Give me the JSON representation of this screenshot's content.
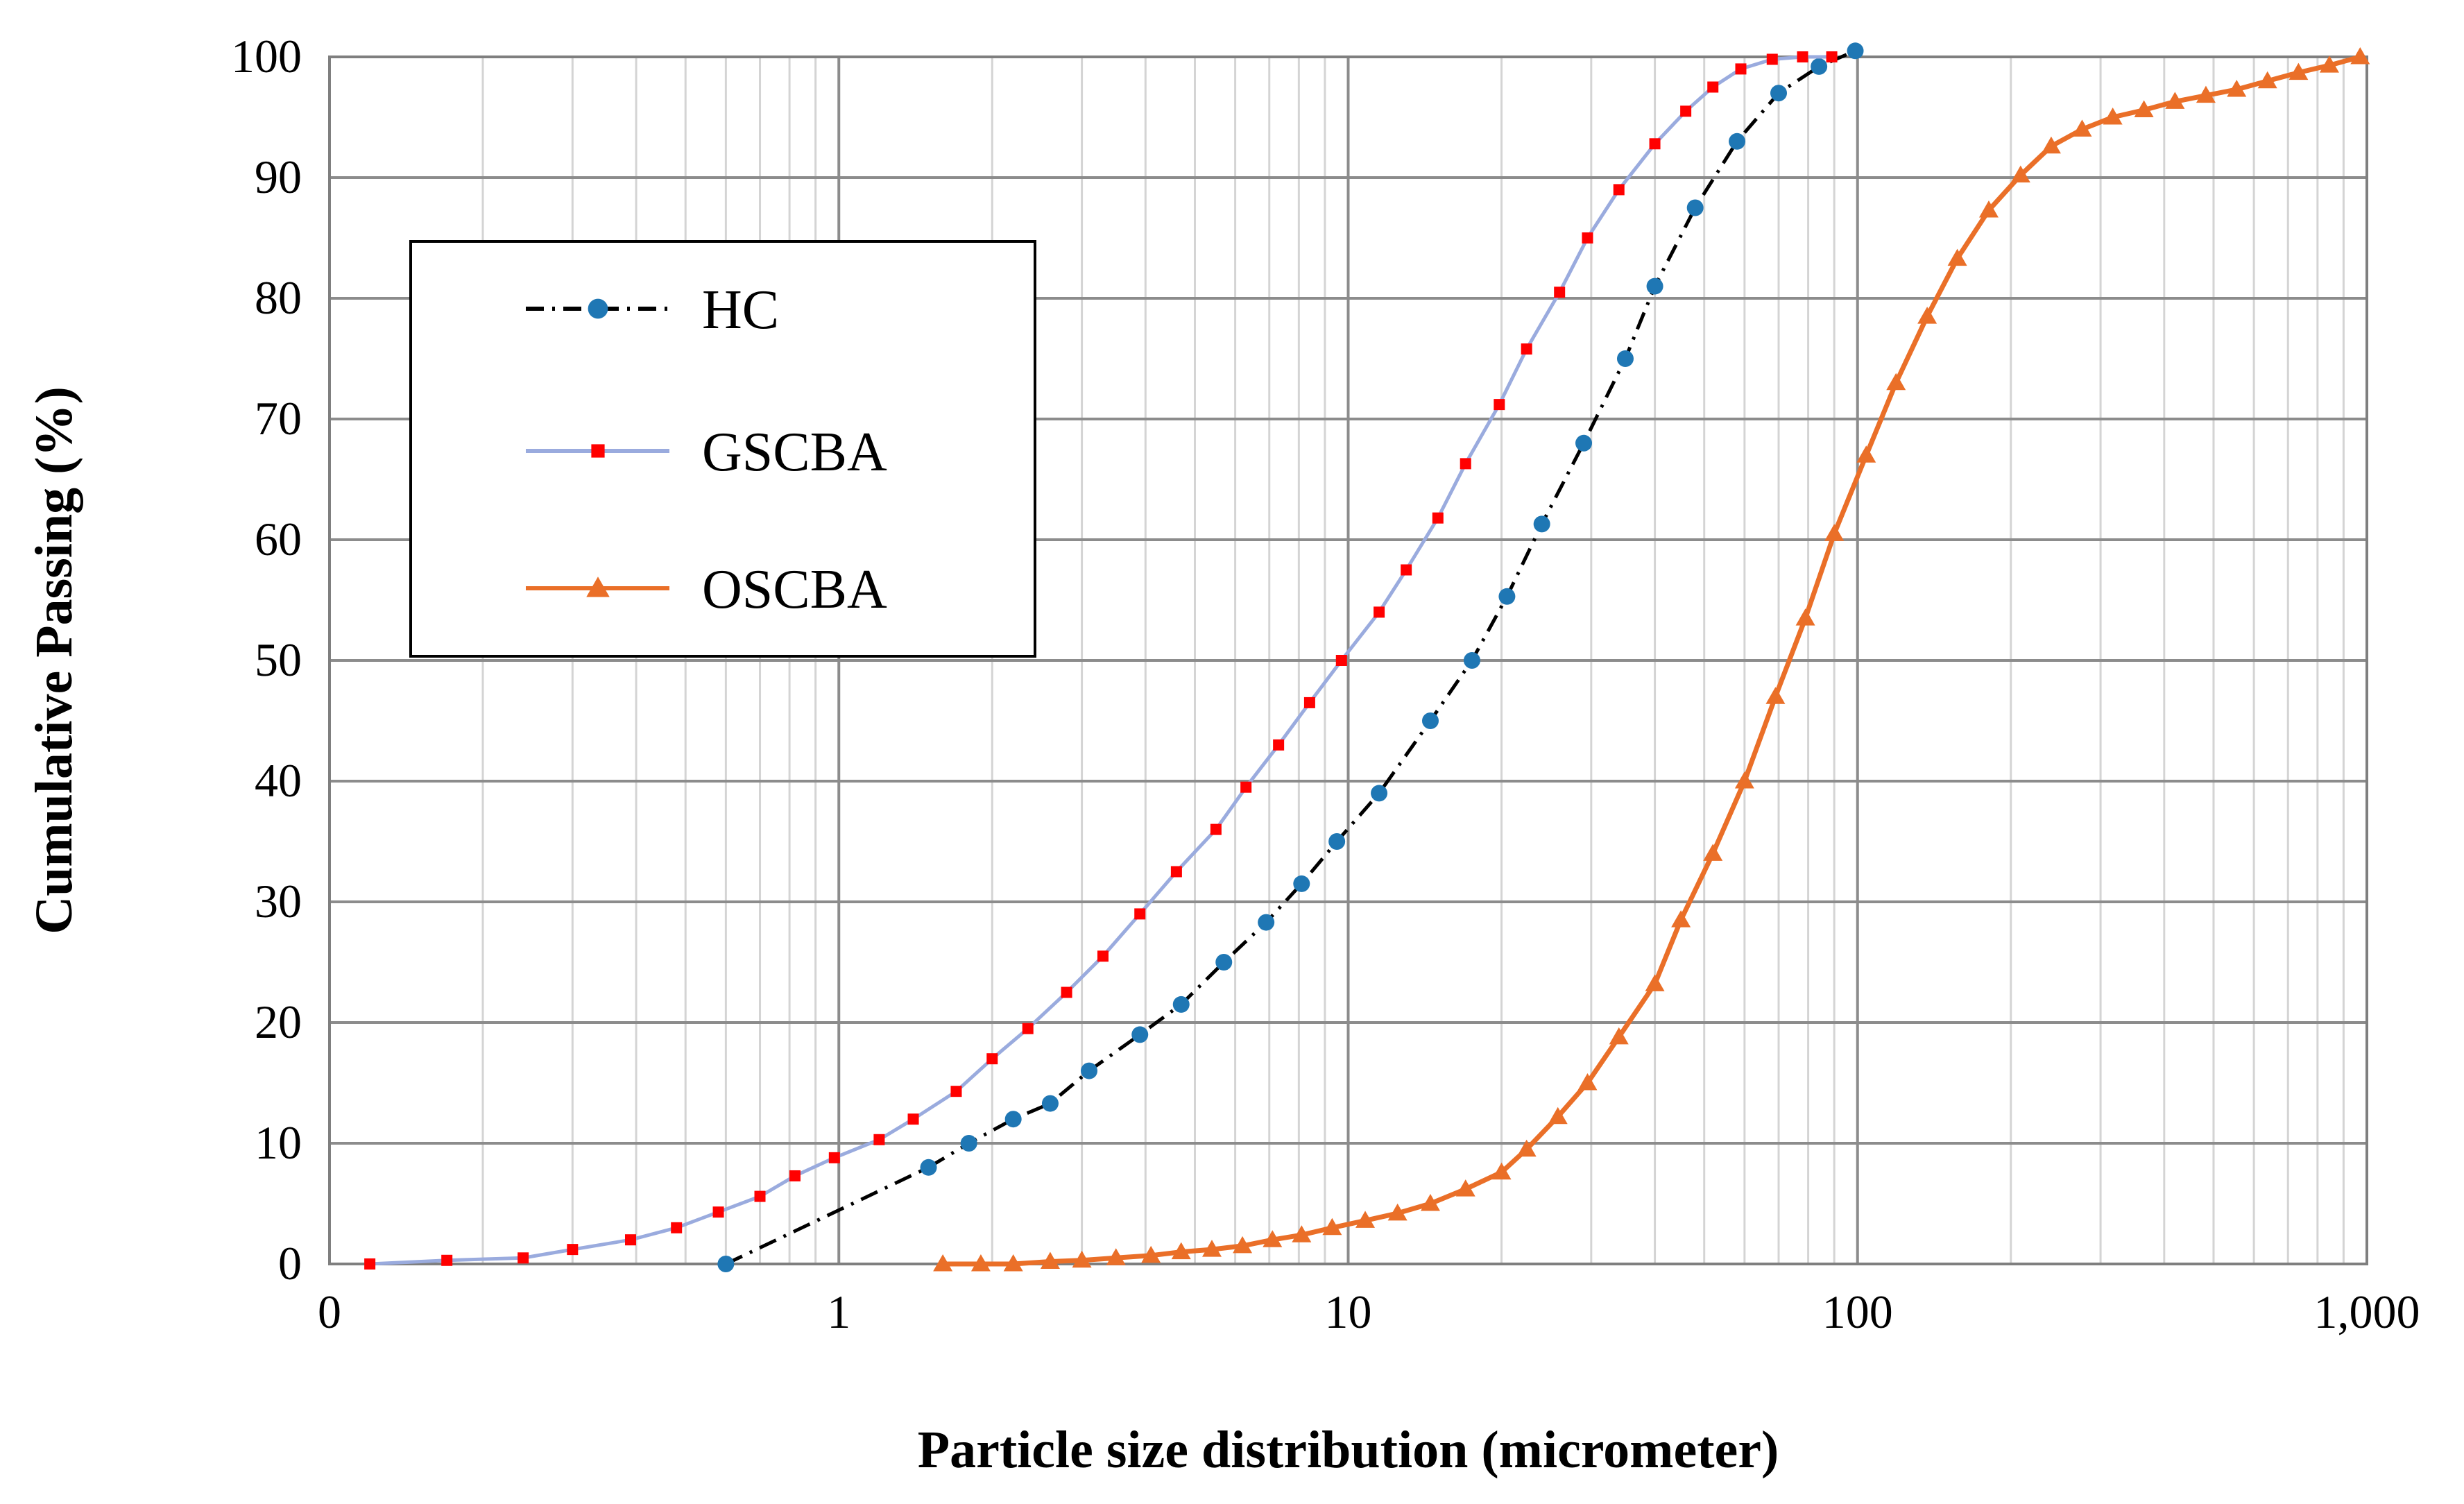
{
  "chart_data": {
    "type": "line",
    "title": "",
    "xlabel": "Particle size distribution (micrometer)",
    "ylabel": "Cumulative Passing (%)",
    "x_scale": "log",
    "xlim": [
      0.1,
      1000
    ],
    "ylim": [
      0,
      100
    ],
    "x_tick_values": [
      0.1,
      1,
      10,
      100,
      1000
    ],
    "x_tick_labels": [
      "0",
      "1",
      "10",
      "100",
      "1,000"
    ],
    "y_ticks": [
      0,
      10,
      20,
      30,
      40,
      50,
      60,
      70,
      80,
      90,
      100
    ],
    "grid": true,
    "legend_position": "upper-left",
    "series": [
      {
        "name": "HC",
        "color": "#1f77b4",
        "line_style": "dash-dot",
        "line_color": "#000000",
        "marker": "circle",
        "points": [
          [
            0.6,
            0
          ],
          [
            1.5,
            8
          ],
          [
            1.8,
            10
          ],
          [
            2.2,
            12
          ],
          [
            2.6,
            13.3
          ],
          [
            3.1,
            16
          ],
          [
            3.9,
            19
          ],
          [
            4.7,
            21.5
          ],
          [
            5.7,
            25
          ],
          [
            6.9,
            28.3
          ],
          [
            8.1,
            31.5
          ],
          [
            9.5,
            35
          ],
          [
            11.5,
            39
          ],
          [
            14.5,
            45
          ],
          [
            17.5,
            50
          ],
          [
            20.5,
            55.3
          ],
          [
            24,
            61.3
          ],
          [
            29,
            68
          ],
          [
            35,
            75
          ],
          [
            40,
            81
          ],
          [
            48,
            87.5
          ],
          [
            58,
            93
          ],
          [
            70,
            97
          ],
          [
            84,
            99.2
          ],
          [
            99,
            100.5
          ]
        ]
      },
      {
        "name": "GSCBA",
        "color": "#ff0000",
        "line_color": "#9aabde",
        "line_style": "solid",
        "marker": "square",
        "points": [
          [
            0.12,
            0
          ],
          [
            0.17,
            0.3
          ],
          [
            0.24,
            0.5
          ],
          [
            0.3,
            1.2
          ],
          [
            0.39,
            2
          ],
          [
            0.48,
            3
          ],
          [
            0.58,
            4.3
          ],
          [
            0.7,
            5.6
          ],
          [
            0.82,
            7.3
          ],
          [
            0.98,
            8.8
          ],
          [
            1.2,
            10.3
          ],
          [
            1.4,
            12
          ],
          [
            1.7,
            14.3
          ],
          [
            2,
            17
          ],
          [
            2.35,
            19.5
          ],
          [
            2.8,
            22.5
          ],
          [
            3.3,
            25.5
          ],
          [
            3.9,
            29
          ],
          [
            4.6,
            32.5
          ],
          [
            5.5,
            36
          ],
          [
            6.3,
            39.5
          ],
          [
            7.3,
            43
          ],
          [
            8.4,
            46.5
          ],
          [
            9.7,
            50
          ],
          [
            11.5,
            54
          ],
          [
            13,
            57.5
          ],
          [
            15,
            61.8
          ],
          [
            17,
            66.3
          ],
          [
            19.8,
            71.2
          ],
          [
            22.4,
            75.8
          ],
          [
            26,
            80.5
          ],
          [
            29.5,
            85
          ],
          [
            34,
            89
          ],
          [
            40,
            92.8
          ],
          [
            46,
            95.5
          ],
          [
            52,
            97.5
          ],
          [
            59,
            99
          ],
          [
            68,
            99.8
          ],
          [
            78,
            100
          ],
          [
            89,
            100
          ]
        ]
      },
      {
        "name": "OSCBA",
        "color": "#ea6f28",
        "line_color": "#ea6f28",
        "line_style": "solid",
        "marker": "triangle",
        "points": [
          [
            1.6,
            0
          ],
          [
            1.9,
            0
          ],
          [
            2.2,
            0
          ],
          [
            2.6,
            0.2
          ],
          [
            3,
            0.3
          ],
          [
            3.5,
            0.5
          ],
          [
            4.1,
            0.7
          ],
          [
            4.7,
            1
          ],
          [
            5.4,
            1.2
          ],
          [
            6.2,
            1.5
          ],
          [
            7.1,
            2
          ],
          [
            8.1,
            2.4
          ],
          [
            9.3,
            3
          ],
          [
            10.8,
            3.6
          ],
          [
            12.5,
            4.2
          ],
          [
            14.5,
            5
          ],
          [
            17,
            6.2
          ],
          [
            20,
            7.6
          ],
          [
            22.4,
            9.5
          ],
          [
            25.8,
            12.2
          ],
          [
            29.5,
            15
          ],
          [
            34,
            18.8
          ],
          [
            40,
            23.2
          ],
          [
            45,
            28.5
          ],
          [
            52,
            34
          ],
          [
            60,
            40
          ],
          [
            69,
            47
          ],
          [
            79,
            53.5
          ],
          [
            90,
            60.5
          ],
          [
            104,
            67
          ],
          [
            119,
            73
          ],
          [
            137,
            78.5
          ],
          [
            157,
            83.3
          ],
          [
            181,
            87.3
          ],
          [
            209,
            90.2
          ],
          [
            240,
            92.6
          ],
          [
            276,
            94
          ],
          [
            317,
            95
          ],
          [
            365,
            95.6
          ],
          [
            420,
            96.3
          ],
          [
            483,
            96.8
          ],
          [
            555,
            97.3
          ],
          [
            638,
            98
          ],
          [
            734,
            98.7
          ],
          [
            844,
            99.3
          ],
          [
            970,
            100
          ]
        ]
      }
    ]
  }
}
